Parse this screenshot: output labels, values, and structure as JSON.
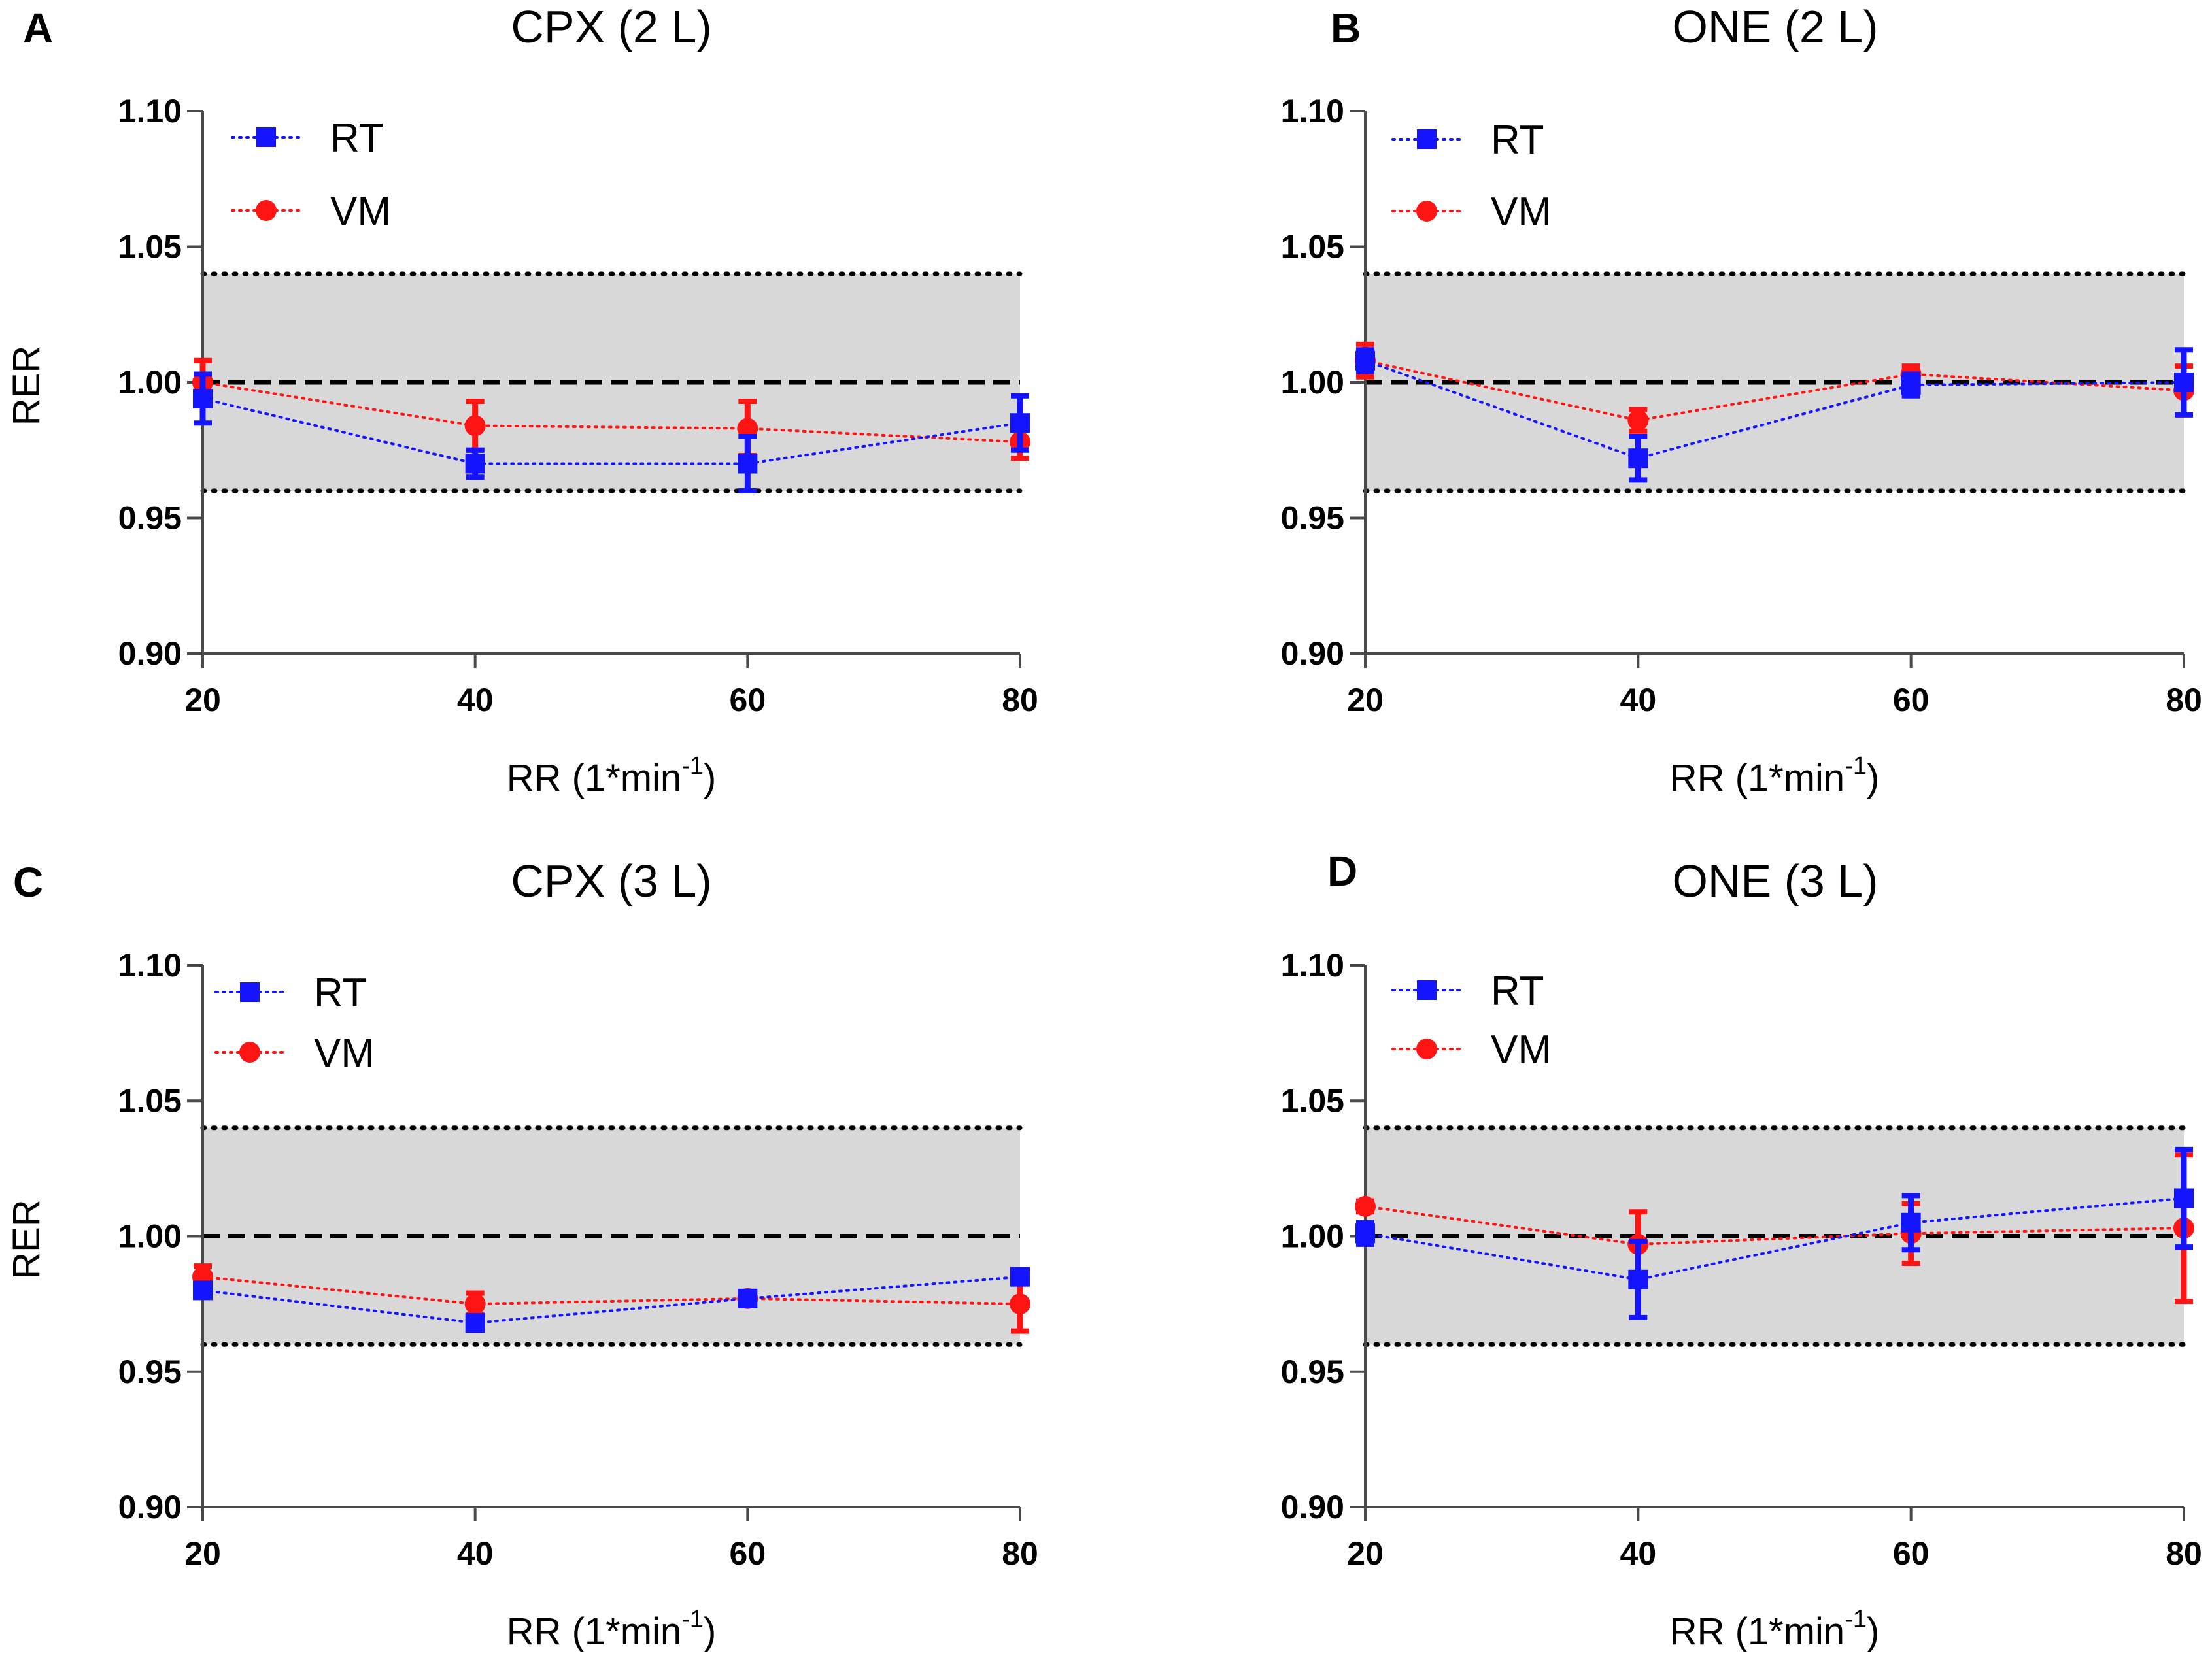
{
  "colors": {
    "rt": "#1414ff",
    "vm": "#ff1414",
    "band": "#d8d8d8",
    "axis": "#4a4a4a"
  },
  "chart_data": [
    {
      "type": "line",
      "panel": "A",
      "title": "CPX (2 L)",
      "ylabel": "RER",
      "xlabel": "RR (1*min",
      "xlabel_sup": "-1",
      "xlabel_end": ")",
      "x": [
        20,
        40,
        60,
        80
      ],
      "xlim": [
        20,
        80
      ],
      "ylim": [
        0.9,
        1.1
      ],
      "xticks": [
        "20",
        "40",
        "60",
        "80"
      ],
      "yticks": [
        "0.90",
        "0.95",
        "1.00",
        "1.05",
        "1.10"
      ],
      "reference_line": 1.0,
      "band": [
        0.96,
        1.04
      ],
      "legend_position": "top-left",
      "series": [
        {
          "name": "RT",
          "marker": "square",
          "values": [
            0.994,
            0.97,
            0.97,
            0.985
          ],
          "err": [
            0.009,
            0.005,
            0.01,
            0.01
          ]
        },
        {
          "name": "VM",
          "marker": "circle",
          "values": [
            1.0,
            0.984,
            0.983,
            0.978
          ],
          "err": [
            0.008,
            0.009,
            0.01,
            0.006
          ]
        }
      ]
    },
    {
      "type": "line",
      "panel": "B",
      "title": "ONE (2 L)",
      "ylabel": "",
      "xlabel": "RR (1*min",
      "xlabel_sup": "-1",
      "xlabel_end": ")",
      "x": [
        20,
        40,
        60,
        80
      ],
      "xlim": [
        20,
        80
      ],
      "ylim": [
        0.9,
        1.1
      ],
      "xticks": [
        "20",
        "40",
        "60",
        "80"
      ],
      "yticks": [
        "0.90",
        "0.95",
        "1.00",
        "1.05",
        "1.10"
      ],
      "reference_line": 1.0,
      "band": [
        0.96,
        1.04
      ],
      "legend_position": "top-left",
      "series": [
        {
          "name": "RT",
          "marker": "square",
          "values": [
            1.008,
            0.972,
            0.999,
            1.0
          ],
          "err": [
            0.004,
            0.008,
            0.004,
            0.012
          ]
        },
        {
          "name": "VM",
          "marker": "circle",
          "values": [
            1.008,
            0.986,
            1.003,
            0.997
          ],
          "err": [
            0.006,
            0.004,
            0.003,
            0.009
          ]
        }
      ]
    },
    {
      "type": "line",
      "panel": "C",
      "title": "CPX (3 L)",
      "ylabel": "RER",
      "xlabel": "RR (1*min",
      "xlabel_sup": "-1",
      "xlabel_end": ")",
      "x": [
        20,
        40,
        60,
        80
      ],
      "xlim": [
        20,
        80
      ],
      "ylim": [
        0.9,
        1.1
      ],
      "xticks": [
        "20",
        "40",
        "60",
        "80"
      ],
      "yticks": [
        "0.90",
        "0.95",
        "1.00",
        "1.05",
        "1.10"
      ],
      "reference_line": 1.0,
      "band": [
        0.96,
        1.04
      ],
      "legend_position": "top-left",
      "series": [
        {
          "name": "RT",
          "marker": "square",
          "values": [
            0.98,
            0.968,
            0.977,
            0.985
          ],
          "err": [
            0.002,
            0.002,
            0.002,
            0.002
          ]
        },
        {
          "name": "VM",
          "marker": "circle",
          "values": [
            0.985,
            0.975,
            0.977,
            0.975
          ],
          "err": [
            0.004,
            0.004,
            0.002,
            0.01
          ]
        }
      ]
    },
    {
      "type": "line",
      "panel": "D",
      "title": "ONE (3 L)",
      "ylabel": "",
      "xlabel": "RR (1*min",
      "xlabel_sup": "-1",
      "xlabel_end": ")",
      "x": [
        20,
        40,
        60,
        80
      ],
      "xlim": [
        20,
        80
      ],
      "ylim": [
        0.9,
        1.1
      ],
      "xticks": [
        "20",
        "40",
        "60",
        "80"
      ],
      "yticks": [
        "0.90",
        "0.95",
        "1.00",
        "1.05",
        "1.10"
      ],
      "reference_line": 1.0,
      "band": [
        0.96,
        1.04
      ],
      "legend_position": "top-left",
      "series": [
        {
          "name": "RT",
          "marker": "square",
          "values": [
            1.001,
            0.984,
            1.005,
            1.014
          ],
          "err": [
            0.004,
            0.014,
            0.01,
            0.018
          ]
        },
        {
          "name": "VM",
          "marker": "circle",
          "values": [
            1.011,
            0.997,
            1.001,
            1.003
          ],
          "err": [
            0.002,
            0.012,
            0.011,
            0.027
          ]
        }
      ]
    }
  ]
}
